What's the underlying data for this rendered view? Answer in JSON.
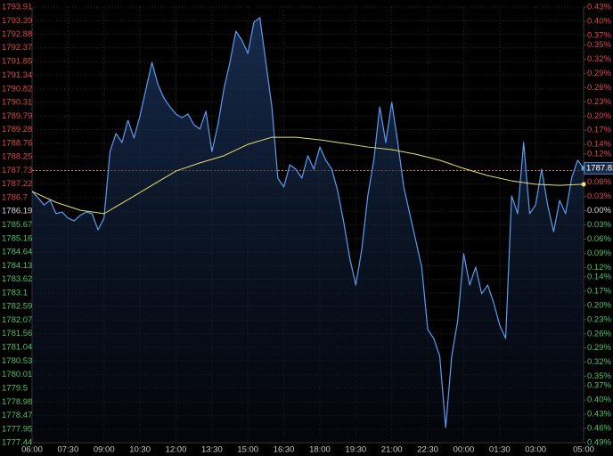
{
  "chart_data": {
    "type": "line",
    "x": [
      "06:00",
      "06:15",
      "06:30",
      "06:45",
      "07:00",
      "07:15",
      "07:30",
      "07:45",
      "08:00",
      "08:15",
      "08:30",
      "08:45",
      "09:00",
      "09:15",
      "09:30",
      "09:45",
      "10:00",
      "10:15",
      "10:30",
      "10:45",
      "11:00",
      "11:15",
      "11:30",
      "11:45",
      "12:00",
      "12:15",
      "12:30",
      "12:45",
      "13:00",
      "13:15",
      "13:30",
      "13:45",
      "14:00",
      "14:15",
      "14:30",
      "14:45",
      "15:00",
      "15:15",
      "15:30",
      "15:45",
      "16:00",
      "16:15",
      "16:30",
      "16:45",
      "17:00",
      "17:15",
      "17:30",
      "17:45",
      "18:00",
      "18:15",
      "18:30",
      "18:45",
      "19:00",
      "19:15",
      "19:30",
      "19:45",
      "20:00",
      "20:15",
      "20:30",
      "20:45",
      "21:00",
      "21:15",
      "21:30",
      "21:45",
      "22:00",
      "22:15",
      "22:30",
      "22:45",
      "23:00",
      "23:15",
      "23:30",
      "23:45",
      "00:00",
      "00:15",
      "00:30",
      "00:45",
      "01:00",
      "01:15",
      "01:30",
      "01:45",
      "02:00",
      "02:15",
      "02:30",
      "02:45",
      "03:00",
      "03:15",
      "03:30",
      "03:45",
      "04:00",
      "04:15",
      "04:30",
      "04:45",
      "05:00"
    ],
    "series": [
      {
        "color": "#5b9cf0",
        "area": true,
        "values": [
          1786.94,
          1786.7,
          1786.43,
          1786.6,
          1786.1,
          1786.16,
          1785.93,
          1785.83,
          1786.03,
          1786.16,
          1786.1,
          1785.49,
          1785.93,
          1788.45,
          1789.13,
          1788.79,
          1789.63,
          1788.96,
          1789.8,
          1790.81,
          1791.82,
          1790.98,
          1790.47,
          1790.14,
          1789.87,
          1789.73,
          1789.87,
          1789.46,
          1789.3,
          1789.97,
          1788.45,
          1789.46,
          1790.81,
          1791.82,
          1793.0,
          1792.66,
          1792.16,
          1793.34,
          1793.51,
          1791.82,
          1790.14,
          1787.44,
          1787.11,
          1787.95,
          1787.78,
          1787.44,
          1788.29,
          1787.78,
          1788.62,
          1788.12,
          1787.78,
          1786.94,
          1785.76,
          1784.41,
          1783.4,
          1784.75,
          1786.77,
          1788.12,
          1790.14,
          1788.79,
          1790.31,
          1788.79,
          1787.11,
          1786.1,
          1785.09,
          1784.08,
          1781.72,
          1781.38,
          1780.71,
          1778.01,
          1780.71,
          1782.05,
          1784.58,
          1783.4,
          1784.08,
          1783.07,
          1783.4,
          1782.73,
          1781.89,
          1781.38,
          1786.77,
          1786.1,
          1788.79,
          1786.1,
          1786.43,
          1787.78,
          1786.43,
          1785.42,
          1786.6,
          1786.1,
          1787.44,
          1788.12,
          1787.82
        ]
      },
      {
        "color": "#e6df6e",
        "x": [
          "06:00",
          "07:00",
          "08:00",
          "09:00",
          "10:00",
          "11:00",
          "12:00",
          "13:00",
          "14:00",
          "15:00",
          "16:00",
          "17:00",
          "18:00",
          "19:00",
          "20:00",
          "21:00",
          "22:00",
          "23:00",
          "00:00",
          "01:00",
          "02:00",
          "03:00",
          "04:00",
          "05:00"
        ],
        "values": [
          1786.94,
          1786.53,
          1786.23,
          1786.1,
          1786.63,
          1787.17,
          1787.71,
          1788.02,
          1788.29,
          1788.72,
          1788.99,
          1788.99,
          1788.89,
          1788.76,
          1788.62,
          1788.52,
          1788.35,
          1788.12,
          1787.81,
          1787.54,
          1787.34,
          1787.21,
          1787.17,
          1787.21
        ]
      }
    ],
    "current_price": 1787.82,
    "reference_line": 1787.73,
    "reference_color": "#e07a3a",
    "up_color": "#e0474c",
    "down_color": "#4fc36b",
    "flat_color": "#d8d8d8",
    "grid": true,
    "xticks": [
      "06:00",
      "07:30",
      "09:00",
      "10:30",
      "12:00",
      "13:30",
      "15:00",
      "16:30",
      "18:00",
      "19:30",
      "21:00",
      "22:30",
      "00:00",
      "01:30",
      "03:00",
      "05:00"
    ],
    "ylim": [
      1777.44,
      1793.91
    ],
    "yticks": [
      1793.91,
      1793.39,
      1792.88,
      1792.37,
      1791.85,
      1791.34,
      1790.82,
      1790.31,
      1789.79,
      1789.28,
      1788.76,
      1788.25,
      1787.73,
      1787.22,
      1786.7,
      1786.19,
      1785.67,
      1785.16,
      1784.64,
      1784.13,
      1783.62,
      1783.1,
      1782.59,
      1782.07,
      1781.56,
      1781.04,
      1780.53,
      1780.01,
      1779.5,
      1778.98,
      1778.47,
      1777.95,
      1777.44
    ],
    "y2lim": [
      -0.49,
      0.43
    ],
    "y2ticks": [
      {
        "value": 0.43,
        "label": "0.43%"
      },
      {
        "value": 0.4,
        "label": "0.40%"
      },
      {
        "value": 0.37,
        "label": "0.37%"
      },
      {
        "value": 0.35,
        "label": "0.35%"
      },
      {
        "value": 0.32,
        "label": "0.32%"
      },
      {
        "value": 0.29,
        "label": "0.29%"
      },
      {
        "value": 0.26,
        "label": "0.26%"
      },
      {
        "value": 0.23,
        "label": "0.23%"
      },
      {
        "value": 0.2,
        "label": "0.20%"
      },
      {
        "value": 0.17,
        "label": "0.17%"
      },
      {
        "value": 0.14,
        "label": "0.14%"
      },
      {
        "value": 0.12,
        "label": "0.12%"
      },
      {
        "value": 0.06,
        "label": "0.06%"
      },
      {
        "value": 0.03,
        "label": "0.03%"
      },
      {
        "value": 0,
        "label": "0.00%"
      },
      {
        "value": -0.03,
        "label": "0.03%"
      },
      {
        "value": -0.06,
        "label": "0.06%"
      },
      {
        "value": -0.09,
        "label": "0.09%"
      },
      {
        "value": -0.12,
        "label": "0.12%"
      },
      {
        "value": -0.14,
        "label": "0.14%"
      },
      {
        "value": -0.17,
        "label": "0.17%"
      },
      {
        "value": -0.2,
        "label": "0.20%"
      },
      {
        "value": -0.23,
        "label": "0.23%"
      },
      {
        "value": -0.26,
        "label": "0.26%"
      },
      {
        "value": -0.29,
        "label": "0.29%"
      },
      {
        "value": -0.32,
        "label": "0.32%"
      },
      {
        "value": -0.35,
        "label": "0.35%"
      },
      {
        "value": -0.37,
        "label": "0.37%"
      },
      {
        "value": -0.4,
        "label": "0.40%"
      },
      {
        "value": -0.43,
        "label": "0.43%"
      },
      {
        "value": -0.46,
        "label": "0.46%"
      },
      {
        "value": -0.49,
        "label": "0.49%"
      }
    ]
  }
}
